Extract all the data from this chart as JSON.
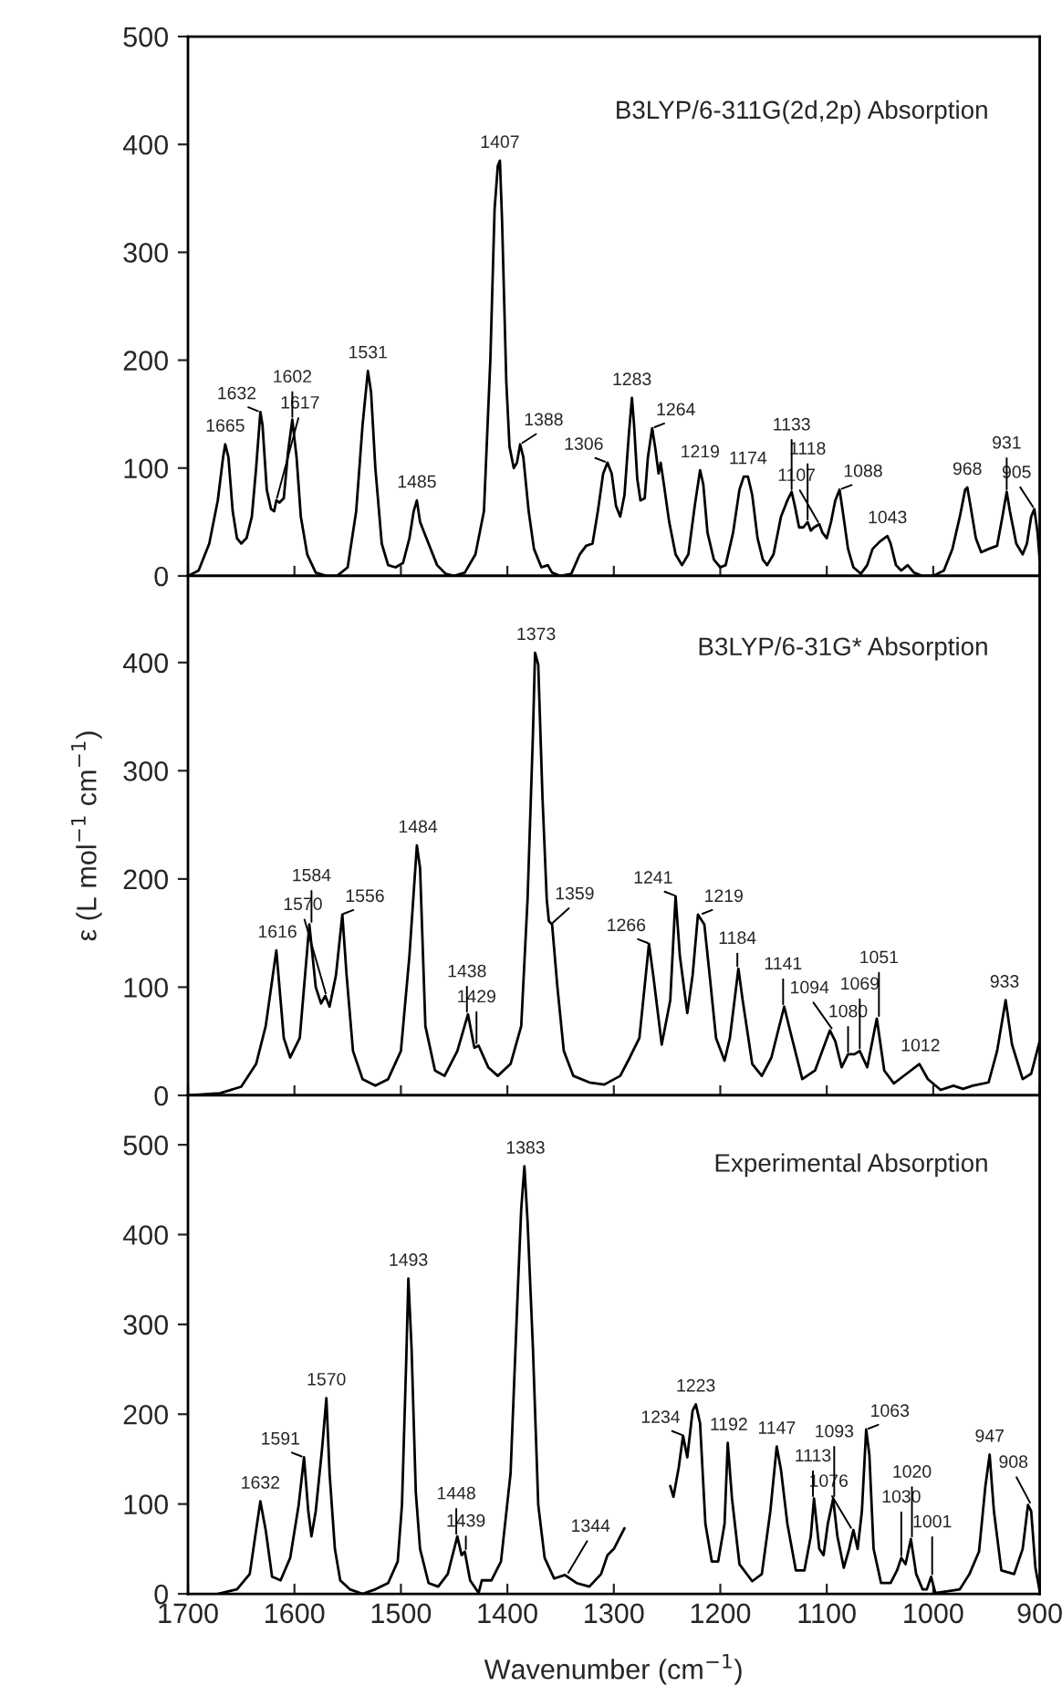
{
  "chart_data": [
    {
      "type": "line",
      "title": "B3LYP/6-311G(2d,2p) Absorption",
      "xlim": [
        1700,
        900
      ],
      "ylim": [
        0,
        500
      ],
      "xticks": [
        1700,
        1600,
        1500,
        1400,
        1300,
        1200,
        1100,
        1000,
        900
      ],
      "yticks": [
        0,
        100,
        200,
        300,
        400,
        500
      ],
      "tick_labels": "y",
      "series": [
        {
          "color": "#000000",
          "x": [
            1700,
            1690,
            1680,
            1672,
            1667,
            1665,
            1662,
            1658,
            1654,
            1650,
            1645,
            1640,
            1636,
            1632,
            1630,
            1626,
            1622,
            1619,
            1617,
            1614,
            1610,
            1606,
            1602,
            1598,
            1594,
            1588,
            1580,
            1570,
            1560,
            1550,
            1542,
            1536,
            1531,
            1528,
            1524,
            1518,
            1512,
            1505,
            1498,
            1492,
            1488,
            1485,
            1482,
            1478,
            1472,
            1466,
            1458,
            1450,
            1440,
            1430,
            1422,
            1416,
            1412,
            1409,
            1407,
            1405,
            1401,
            1398,
            1394,
            1391,
            1388,
            1385,
            1380,
            1375,
            1368,
            1362,
            1358,
            1350,
            1340,
            1332,
            1326,
            1320,
            1315,
            1310,
            1306,
            1302,
            1298,
            1294,
            1290,
            1286,
            1283,
            1281,
            1278,
            1275,
            1271,
            1268,
            1264,
            1261,
            1258,
            1256,
            1253,
            1248,
            1242,
            1236,
            1230,
            1224,
            1219,
            1216,
            1212,
            1206,
            1200,
            1195,
            1188,
            1182,
            1178,
            1174,
            1170,
            1165,
            1160,
            1156,
            1150,
            1143,
            1137,
            1133,
            1130,
            1126,
            1122,
            1118,
            1115,
            1112,
            1107,
            1104,
            1100,
            1096,
            1092,
            1088,
            1085,
            1080,
            1075,
            1068,
            1062,
            1057,
            1050,
            1043,
            1040,
            1035,
            1030,
            1024,
            1018,
            1010,
            1000,
            990,
            982,
            975,
            970,
            968,
            965,
            960,
            955,
            948,
            940,
            935,
            931,
            928,
            922,
            916,
            912,
            908,
            905,
            902,
            900
          ],
          "values": [
            0,
            5,
            30,
            70,
            110,
            122,
            110,
            60,
            35,
            30,
            35,
            55,
            100,
            152,
            140,
            80,
            62,
            60,
            70,
            68,
            72,
            115,
            145,
            110,
            55,
            20,
            3,
            0,
            0,
            8,
            60,
            140,
            190,
            170,
            100,
            30,
            10,
            8,
            12,
            35,
            60,
            70,
            50,
            40,
            25,
            10,
            2,
            0,
            3,
            20,
            60,
            200,
            340,
            380,
            385,
            330,
            180,
            120,
            100,
            105,
            122,
            110,
            60,
            25,
            8,
            10,
            3,
            0,
            2,
            20,
            28,
            30,
            60,
            95,
            105,
            95,
            65,
            55,
            75,
            130,
            165,
            140,
            90,
            70,
            72,
            110,
            137,
            118,
            95,
            105,
            85,
            50,
            20,
            10,
            20,
            65,
            98,
            85,
            40,
            15,
            8,
            10,
            40,
            80,
            92,
            92,
            75,
            35,
            15,
            10,
            20,
            55,
            70,
            78,
            65,
            45,
            45,
            50,
            42,
            45,
            48,
            40,
            35,
            50,
            70,
            80,
            60,
            25,
            8,
            2,
            10,
            25,
            32,
            37,
            30,
            10,
            5,
            10,
            3,
            0,
            0,
            5,
            25,
            55,
            80,
            82,
            65,
            35,
            22,
            25,
            28,
            55,
            78,
            60,
            30,
            20,
            30,
            55,
            62,
            40,
            15
          ]
        }
      ],
      "annotations": [
        {
          "text": "1665",
          "x": 1665,
          "y": 122
        },
        {
          "text": "1632",
          "x": 1632,
          "y": 152
        },
        {
          "text": "1617",
          "x": 1617,
          "y": 70
        },
        {
          "text": "1602",
          "x": 1602,
          "y": 145
        },
        {
          "text": "1531",
          "x": 1531,
          "y": 190
        },
        {
          "text": "1485",
          "x": 1485,
          "y": 70
        },
        {
          "text": "1407",
          "x": 1407,
          "y": 385
        },
        {
          "text": "1388",
          "x": 1388,
          "y": 122
        },
        {
          "text": "1306",
          "x": 1306,
          "y": 105
        },
        {
          "text": "1283",
          "x": 1283,
          "y": 165
        },
        {
          "text": "1264",
          "x": 1264,
          "y": 137
        },
        {
          "text": "1219",
          "x": 1219,
          "y": 98
        },
        {
          "text": "1174",
          "x": 1174,
          "y": 92
        },
        {
          "text": "1133",
          "x": 1133,
          "y": 78
        },
        {
          "text": "1118",
          "x": 1118,
          "y": 50
        },
        {
          "text": "1107",
          "x": 1107,
          "y": 48
        },
        {
          "text": "1088",
          "x": 1088,
          "y": 80
        },
        {
          "text": "1043",
          "x": 1043,
          "y": 37
        },
        {
          "text": "968",
          "x": 968,
          "y": 82
        },
        {
          "text": "931",
          "x": 931,
          "y": 78
        },
        {
          "text": "905",
          "x": 905,
          "y": 62
        }
      ]
    },
    {
      "type": "line",
      "title": "B3LYP/6-31G* Absorption",
      "ylabel": "ε (L mol$^{−1}$ cm$^{−1}$)",
      "xlim": [
        1700,
        900
      ],
      "ylim": [
        0,
        480
      ],
      "xticks": [
        1700,
        1600,
        1500,
        1400,
        1300,
        1200,
        1100,
        1000,
        900
      ],
      "yticks": [
        0,
        100,
        200,
        300,
        400
      ],
      "tick_labels": "y",
      "series": [
        {
          "color": "#000000",
          "x": [
            1700,
            1670,
            1660,
            1650,
            1642,
            1636,
            1627,
            1617,
            1610,
            1604,
            1595,
            1586,
            1580,
            1575,
            1571,
            1567,
            1561,
            1555,
            1551,
            1545,
            1536,
            1524,
            1512,
            1500,
            1492,
            1485,
            1482,
            1477,
            1468,
            1459,
            1447,
            1437,
            1431,
            1427,
            1418,
            1409,
            1397,
            1387,
            1381,
            1376,
            1374,
            1371,
            1367,
            1363,
            1361,
            1358,
            1353,
            1347,
            1338,
            1323,
            1309,
            1294,
            1285,
            1276,
            1267,
            1263,
            1255,
            1247,
            1242,
            1238,
            1231,
            1226,
            1221,
            1215,
            1210,
            1204,
            1196,
            1191,
            1183,
            1179,
            1170,
            1161,
            1152,
            1140,
            1134,
            1123,
            1111,
            1102,
            1097,
            1092,
            1086,
            1080,
            1074,
            1069,
            1062,
            1053,
            1046,
            1037,
            1025,
            1013,
            1005,
            993,
            981,
            972,
            963,
            948,
            940,
            932,
            926,
            916,
            908,
            900
          ],
          "values": [
            0,
            2,
            5,
            8,
            20,
            29,
            64,
            134,
            53,
            35,
            53,
            158,
            100,
            85,
            92,
            82,
            111,
            167,
            111,
            41,
            15,
            9,
            15,
            41,
            129,
            231,
            210,
            64,
            23,
            18,
            41,
            75,
            44,
            46,
            26,
            18,
            29,
            64,
            182,
            333,
            409,
            398,
            275,
            181,
            161,
            158,
            100,
            41,
            18,
            12,
            10,
            18,
            35,
            53,
            140,
            111,
            47,
            88,
            184,
            129,
            76,
            111,
            167,
            158,
            111,
            53,
            32,
            53,
            117,
            88,
            29,
            18,
            35,
            82,
            58,
            15,
            23,
            47,
            60,
            50,
            26,
            38,
            38,
            41,
            26,
            71,
            23,
            11,
            20,
            29,
            15,
            5,
            9,
            6,
            9,
            12,
            41,
            88,
            47,
            15,
            20,
            50
          ]
        }
      ],
      "annotations": [
        {
          "text": "1616",
          "x": 1616,
          "y": 134
        },
        {
          "text": "1584",
          "x": 1584,
          "y": 158
        },
        {
          "text": "1570",
          "x": 1570,
          "y": 92
        },
        {
          "text": "1556",
          "x": 1556,
          "y": 167
        },
        {
          "text": "1484",
          "x": 1484,
          "y": 231
        },
        {
          "text": "1438",
          "x": 1438,
          "y": 75
        },
        {
          "text": "1429",
          "x": 1429,
          "y": 46
        },
        {
          "text": "1373",
          "x": 1373,
          "y": 409
        },
        {
          "text": "1359",
          "x": 1359,
          "y": 158
        },
        {
          "text": "1266",
          "x": 1266,
          "y": 140
        },
        {
          "text": "1241",
          "x": 1241,
          "y": 184
        },
        {
          "text": "1219",
          "x": 1219,
          "y": 167
        },
        {
          "text": "1184",
          "x": 1184,
          "y": 117
        },
        {
          "text": "1141",
          "x": 1141,
          "y": 82
        },
        {
          "text": "1094",
          "x": 1094,
          "y": 60
        },
        {
          "text": "1080",
          "x": 1080,
          "y": 38
        },
        {
          "text": "1069",
          "x": 1069,
          "y": 41
        },
        {
          "text": "1051",
          "x": 1051,
          "y": 71
        },
        {
          "text": "1012",
          "x": 1012,
          "y": 29
        },
        {
          "text": "933",
          "x": 933,
          "y": 88
        }
      ]
    },
    {
      "type": "line",
      "title": "Experimental Absorption",
      "xlabel": "Wavenumber (cm$^{−1}$)",
      "xlim": [
        1700,
        900
      ],
      "ylim": [
        0,
        555
      ],
      "xticks": [
        1700,
        1600,
        1500,
        1400,
        1300,
        1200,
        1100,
        1000,
        900
      ],
      "yticks": [
        0,
        100,
        200,
        300,
        400,
        500
      ],
      "series": [
        {
          "color": "#000000",
          "x": [
            1672,
            1654,
            1642,
            1636,
            1632,
            1627,
            1621,
            1613,
            1604,
            1596,
            1591,
            1587,
            1584,
            1580,
            1574,
            1570,
            1567,
            1562,
            1557,
            1548,
            1536,
            1524,
            1512,
            1503,
            1499,
            1495,
            1493,
            1490,
            1486,
            1482,
            1474,
            1465,
            1456,
            1447,
            1443,
            1440,
            1435,
            1427,
            1424,
            1415,
            1406,
            1397,
            1390,
            1387,
            1384,
            1381,
            1376,
            1371,
            1365,
            1356,
            1346,
            1335,
            1323,
            1312,
            1306,
            1300,
            1290,
            1268,
            1247,
            1244,
            1239,
            1235,
            1231,
            1226,
            1223,
            1219,
            1214,
            1208,
            1202,
            1196,
            1193,
            1189,
            1182,
            1170,
            1161,
            1153,
            1147,
            1143,
            1137,
            1129,
            1121,
            1115,
            1112,
            1107,
            1103,
            1099,
            1094,
            1090,
            1084,
            1079,
            1075,
            1071,
            1067,
            1063,
            1060,
            1056,
            1049,
            1040,
            1034,
            1030,
            1026,
            1021,
            1016,
            1010,
            1006,
            1002,
            998,
            986,
            975,
            966,
            957,
            951,
            947,
            943,
            936,
            924,
            916,
            911,
            908,
            904,
            900
          ],
          "values": [
            0,
            5,
            22,
            71,
            103,
            71,
            19,
            15,
            40,
            99,
            152,
            92,
            64,
            92,
            162,
            218,
            134,
            50,
            15,
            5,
            0,
            5,
            12,
            36,
            99,
            260,
            351,
            274,
            113,
            50,
            12,
            8,
            22,
            64,
            43,
            47,
            15,
            1,
            15,
            15,
            36,
            134,
            344,
            428,
            476,
            414,
            274,
            99,
            40,
            17,
            21,
            12,
            8,
            22,
            43,
            50,
            73,
            null,
            120,
            108,
            141,
            176,
            152,
            204,
            211,
            190,
            78,
            36,
            36,
            78,
            168,
            106,
            33,
            14,
            22,
            92,
            164,
            138,
            78,
            26,
            26,
            64,
            106,
            50,
            43,
            78,
            106,
            64,
            29,
            50,
            71,
            50,
            92,
            183,
            155,
            50,
            12,
            12,
            26,
            40,
            33,
            61,
            22,
            5,
            5,
            19,
            1,
            3,
            5,
            22,
            47,
            120,
            155,
            92,
            26,
            22,
            50,
            99,
            92,
            29,
            3
          ]
        }
      ],
      "annotations": [
        {
          "text": "1632",
          "x": 1632,
          "y": 103
        },
        {
          "text": "1591",
          "x": 1591,
          "y": 152
        },
        {
          "text": "1570",
          "x": 1570,
          "y": 218
        },
        {
          "text": "1493",
          "x": 1493,
          "y": 351
        },
        {
          "text": "1448",
          "x": 1448,
          "y": 64
        },
        {
          "text": "1439",
          "x": 1439,
          "y": 47
        },
        {
          "text": "1383",
          "x": 1383,
          "y": 476
        },
        {
          "text": "1344",
          "x": 1344,
          "y": 21
        },
        {
          "text": "1234",
          "x": 1234,
          "y": 176
        },
        {
          "text": "1223",
          "x": 1223,
          "y": 211
        },
        {
          "text": "1192",
          "x": 1192,
          "y": 168
        },
        {
          "text": "1147",
          "x": 1147,
          "y": 164
        },
        {
          "text": "1113",
          "x": 1113,
          "y": 106
        },
        {
          "text": "1093",
          "x": 1093,
          "y": 106
        },
        {
          "text": "1076",
          "x": 1076,
          "y": 71
        },
        {
          "text": "1063",
          "x": 1063,
          "y": 183
        },
        {
          "text": "1030",
          "x": 1030,
          "y": 40
        },
        {
          "text": "1020",
          "x": 1020,
          "y": 61
        },
        {
          "text": "1001",
          "x": 1001,
          "y": 19
        },
        {
          "text": "947",
          "x": 947,
          "y": 155
        },
        {
          "text": "908",
          "x": 908,
          "y": 99
        }
      ]
    }
  ]
}
